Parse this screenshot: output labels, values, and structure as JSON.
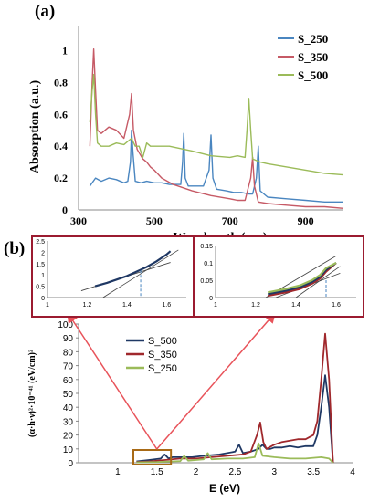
{
  "panel_a_label": "(a)",
  "panel_b_label": "(b)",
  "colors": {
    "blue": "#4a86c0",
    "red": "#c65a66",
    "green": "#9bbb59",
    "dark_blue": "#1f3864",
    "dark_red": "#a0282c",
    "inset_border": "#9b1b30",
    "box": "#a86a16",
    "arrow": "#e8535a"
  },
  "chart_data": [
    {
      "id": "absorption",
      "type": "line",
      "xlabel": "Wavelength (nm)",
      "ylabel": "Absorption (a.u.)",
      "xlim": [
        300,
        1000
      ],
      "ylim": [
        0,
        1.1
      ],
      "xticks": [
        "300",
        "500",
        "700",
        "900"
      ],
      "yticks": [
        "0",
        "0.2",
        "0.4",
        "0.6",
        "0.8",
        "1"
      ],
      "legend": "top-right",
      "series": [
        {
          "name": "S_250",
          "color": "#4a86c0",
          "x": [
            330,
            345,
            360,
            380,
            400,
            420,
            430,
            437,
            440,
            444,
            450,
            465,
            480,
            500,
            520,
            540,
            560,
            570,
            575,
            578,
            582,
            590,
            610,
            630,
            645,
            650,
            655,
            665,
            690,
            710,
            730,
            750,
            760,
            770,
            775,
            780,
            800,
            850,
            900,
            950,
            1000
          ],
          "y": [
            0.15,
            0.2,
            0.18,
            0.2,
            0.19,
            0.17,
            0.18,
            0.3,
            0.5,
            0.35,
            0.18,
            0.17,
            0.18,
            0.17,
            0.17,
            0.16,
            0.16,
            0.16,
            0.3,
            0.48,
            0.2,
            0.15,
            0.15,
            0.15,
            0.25,
            0.47,
            0.2,
            0.13,
            0.12,
            0.11,
            0.11,
            0.1,
            0.1,
            0.2,
            0.4,
            0.12,
            0.08,
            0.07,
            0.06,
            0.05,
            0.05
          ]
        },
        {
          "name": "S_350",
          "color": "#c65a66",
          "x": [
            330,
            336,
            340,
            345,
            350,
            360,
            380,
            400,
            420,
            435,
            440,
            445,
            455,
            470,
            480,
            490,
            500,
            520,
            550,
            600,
            650,
            700,
            720,
            740,
            755,
            760,
            765,
            775,
            800,
            850,
            900,
            950,
            1000
          ],
          "y": [
            0.4,
            0.8,
            1.01,
            0.75,
            0.5,
            0.48,
            0.52,
            0.5,
            0.45,
            0.6,
            0.73,
            0.5,
            0.38,
            0.32,
            0.3,
            0.27,
            0.25,
            0.2,
            0.16,
            0.12,
            0.09,
            0.07,
            0.06,
            0.06,
            0.2,
            0.33,
            0.15,
            0.05,
            0.04,
            0.03,
            0.02,
            0.02,
            0.01
          ]
        },
        {
          "name": "S_500",
          "color": "#9bbb59",
          "x": [
            330,
            336,
            340,
            345,
            350,
            360,
            380,
            400,
            420,
            440,
            450,
            460,
            470,
            480,
            490,
            500,
            540,
            560,
            600,
            650,
            700,
            720,
            740,
            745,
            750,
            755,
            760,
            780,
            800,
            850,
            900,
            950,
            1000
          ],
          "y": [
            0.55,
            0.75,
            0.85,
            0.6,
            0.42,
            0.4,
            0.4,
            0.42,
            0.41,
            0.45,
            0.4,
            0.4,
            0.33,
            0.42,
            0.4,
            0.4,
            0.4,
            0.39,
            0.37,
            0.34,
            0.33,
            0.34,
            0.33,
            0.5,
            0.7,
            0.5,
            0.32,
            0.3,
            0.29,
            0.27,
            0.25,
            0.23,
            0.22
          ]
        }
      ]
    },
    {
      "id": "tauc",
      "type": "line",
      "xlabel": "E (eV)",
      "ylabel": "(α·h·ν)²·10⁻⁴¹ (eV/cm)²",
      "xlim": [
        0.5,
        4
      ],
      "ylim": [
        0,
        100
      ],
      "xticks": [
        "1",
        "1.5",
        "2",
        "2.5",
        "3",
        "3.5",
        "4"
      ],
      "yticks": [
        "0",
        "10",
        "20",
        "30",
        "40",
        "50",
        "60",
        "70",
        "80",
        "90",
        "100"
      ],
      "legend": "top-left",
      "series": [
        {
          "name": "S_500",
          "color": "#1f3864",
          "x": [
            1.24,
            1.4,
            1.55,
            1.6,
            1.65,
            1.7,
            1.8,
            1.95,
            2.1,
            2.3,
            2.5,
            2.55,
            2.6,
            2.7,
            2.8,
            2.85,
            2.9,
            2.95,
            3.0,
            3.1,
            3.2,
            3.3,
            3.4,
            3.5,
            3.55,
            3.6,
            3.65,
            3.7,
            3.75
          ],
          "y": [
            1,
            2,
            3,
            6,
            3,
            4,
            4,
            4,
            5,
            6,
            8,
            13,
            7,
            8,
            10,
            13,
            10,
            10,
            11,
            11,
            12,
            11,
            12,
            12,
            20,
            40,
            63,
            40,
            0
          ]
        },
        {
          "name": "S_350",
          "color": "#a0282c",
          "x": [
            1.24,
            1.4,
            1.6,
            1.8,
            2.0,
            2.2,
            2.4,
            2.6,
            2.7,
            2.78,
            2.82,
            2.86,
            2.9,
            3.0,
            3.1,
            3.2,
            3.3,
            3.4,
            3.5,
            3.55,
            3.6,
            3.65,
            3.7,
            3.75
          ],
          "y": [
            0.5,
            1,
            2,
            3,
            3,
            4,
            5,
            6,
            8,
            20,
            29,
            15,
            10,
            13,
            15,
            16,
            17,
            17,
            20,
            30,
            60,
            93,
            60,
            0
          ]
        },
        {
          "name": "S_250",
          "color": "#9bbb59",
          "x": [
            1.24,
            1.5,
            1.6,
            1.7,
            1.8,
            1.85,
            1.9,
            2.0,
            2.1,
            2.15,
            2.2,
            2.4,
            2.6,
            2.75,
            2.8,
            2.85,
            3.0,
            3.2,
            3.4,
            3.6,
            3.7,
            3.75
          ],
          "y": [
            0.3,
            0.5,
            0.8,
            1,
            1.2,
            5,
            1.5,
            2,
            2.5,
            7,
            2.5,
            3,
            3,
            4,
            14,
            5,
            4,
            3,
            3,
            4,
            3,
            0
          ]
        }
      ]
    },
    {
      "id": "inset-left",
      "type": "line",
      "xlim": [
        1,
        1.7
      ],
      "ylim": [
        0,
        2.5
      ],
      "xticks": [
        "1",
        "1.2",
        "1.4",
        "1.6"
      ],
      "yticks": [
        "0",
        "0.5",
        "1",
        "1.5",
        "2",
        "2.5"
      ],
      "series": [
        {
          "color": "#1f3864",
          "x": [
            1.24,
            1.3,
            1.35,
            1.4,
            1.45,
            1.5,
            1.55,
            1.6,
            1.62
          ],
          "y": [
            0.5,
            0.65,
            0.8,
            0.95,
            1.15,
            1.35,
            1.6,
            1.9,
            2.05
          ]
        }
      ],
      "fit_lines": [
        {
          "color": "#444444",
          "x": [
            1.17,
            1.62
          ],
          "y": [
            0.3,
            1.55
          ]
        },
        {
          "color": "#444444",
          "x": [
            1.28,
            1.66
          ],
          "y": [
            0.0,
            2.1
          ]
        }
      ],
      "marker_x": 1.47,
      "marker_y": 1.2
    },
    {
      "id": "inset-right",
      "type": "line",
      "xlim": [
        1,
        1.7
      ],
      "ylim": [
        0,
        0.15
      ],
      "xticks": [
        "1",
        "1.2",
        "1.4",
        "1.6"
      ],
      "yticks": [
        "0",
        "0.05",
        "0.1",
        "0.15"
      ],
      "series": [
        {
          "color": "#a0282c",
          "x": [
            1.26,
            1.35,
            1.42,
            1.48,
            1.52,
            1.55,
            1.6
          ],
          "y": [
            0.005,
            0.015,
            0.025,
            0.04,
            0.055,
            0.075,
            0.1
          ]
        },
        {
          "color": "#1f3864",
          "x": [
            1.26,
            1.35,
            1.42,
            1.48,
            1.52,
            1.55,
            1.6
          ],
          "y": [
            0.01,
            0.02,
            0.03,
            0.045,
            0.06,
            0.08,
            0.1
          ]
        },
        {
          "color": "#9bbb59",
          "x": [
            1.26,
            1.35,
            1.42,
            1.48,
            1.52,
            1.55,
            1.6
          ],
          "y": [
            0.015,
            0.025,
            0.035,
            0.05,
            0.065,
            0.085,
            0.1
          ]
        }
      ],
      "fit_lines": [
        {
          "color": "#444444",
          "x": [
            1.25,
            1.6
          ],
          "y": [
            0.0,
            0.12
          ]
        },
        {
          "color": "#444444",
          "x": [
            1.3,
            1.62
          ],
          "y": [
            0.0,
            0.07
          ]
        },
        {
          "color": "#444444",
          "x": [
            1.4,
            1.62
          ],
          "y": [
            0.0,
            0.09
          ]
        }
      ],
      "marker_x": 1.55,
      "marker_y": 0.05
    }
  ]
}
